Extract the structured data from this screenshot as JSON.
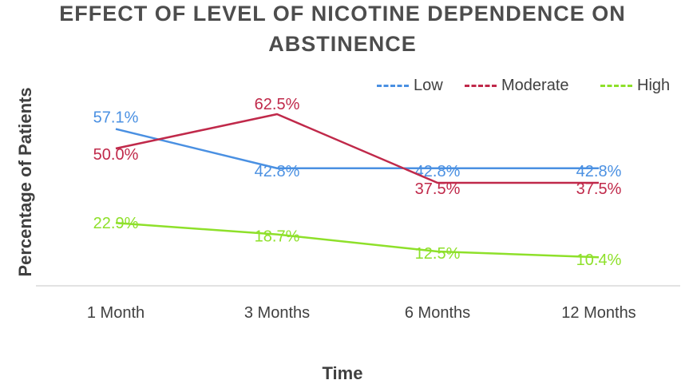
{
  "chart_data": {
    "type": "line",
    "title_lines": [
      "EFFECT OF LEVEL OF NICOTINE DEPENDENCE ON",
      "ABSTINENCE"
    ],
    "xlabel": "Time",
    "ylabel": "Percentage of Patients",
    "categories": [
      "1 Month",
      "3 Months",
      "6 Months",
      "12 Months"
    ],
    "ylim": [
      0,
      75
    ],
    "grid": false,
    "legend_position": "top-right",
    "series": [
      {
        "name": "Low",
        "color": "#4a90e2",
        "values": [
          57.1,
          42.8,
          42.8,
          42.8
        ],
        "labels": [
          "57.1%",
          "42.8%",
          "42.8%",
          "42.8%"
        ]
      },
      {
        "name": "Moderate",
        "color": "#c0294a",
        "values": [
          50.0,
          62.5,
          37.5,
          37.5
        ],
        "labels": [
          "50.0%",
          "62.5%",
          "37.5%",
          "37.5%"
        ]
      },
      {
        "name": "High",
        "color": "#8ee02a",
        "values": [
          22.9,
          18.7,
          12.5,
          10.4
        ],
        "labels": [
          "22.9%",
          "18.7%",
          "12.5%",
          "10.4%"
        ]
      }
    ]
  }
}
